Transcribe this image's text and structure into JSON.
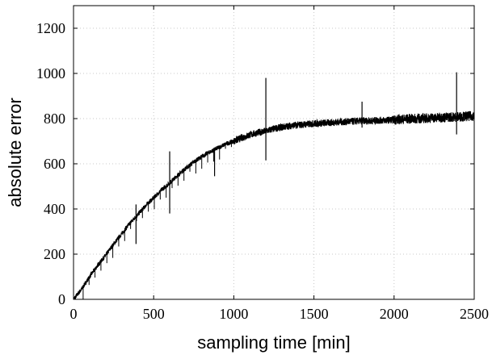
{
  "chart_data": {
    "type": "line",
    "title": "",
    "xlabel": "sampling  time [min]",
    "ylabel": "absolute error",
    "xlim": [
      0,
      2500
    ],
    "ylim": [
      0,
      1300
    ],
    "xticks": [
      0,
      500,
      1000,
      1500,
      2000,
      2500
    ],
    "yticks": [
      0,
      200,
      400,
      600,
      800,
      1000,
      1200
    ],
    "grid": true,
    "legend": "none",
    "line_color": "#000000",
    "series": [
      {
        "values_described_by": "x,y",
        "x": [
          0,
          50,
          100,
          150,
          200,
          250,
          300,
          350,
          400,
          450,
          500,
          550,
          600,
          650,
          700,
          750,
          800,
          850,
          900,
          950,
          1000,
          1050,
          1100,
          1150,
          1200,
          1250,
          1300,
          1350,
          1400,
          1450,
          1500,
          1550,
          1600,
          1650,
          1700,
          1750,
          1800,
          1850,
          1900,
          1950,
          2000,
          2050,
          2100,
          2150,
          2200,
          2250,
          2300,
          2350,
          2400,
          2450,
          2500
        ],
        "y": [
          0,
          45,
          100,
          150,
          195,
          245,
          290,
          335,
          375,
          415,
          450,
          485,
          515,
          550,
          580,
          608,
          632,
          652,
          670,
          688,
          700,
          715,
          728,
          738,
          745,
          755,
          762,
          768,
          772,
          775,
          778,
          780,
          782,
          785,
          786,
          788,
          790,
          790,
          792,
          793,
          795,
          797,
          799,
          800,
          802,
          803,
          805,
          807,
          808,
          810,
          812
        ]
      }
    ],
    "spikes": [
      {
        "x": 600,
        "low": 380,
        "high": 655
      },
      {
        "x": 390,
        "low": 245,
        "high": 420
      },
      {
        "x": 880,
        "low": 545,
        "high": 665
      },
      {
        "x": 1200,
        "low": 615,
        "high": 980
      },
      {
        "x": 1800,
        "low": 760,
        "high": 875
      },
      {
        "x": 2390,
        "low": 730,
        "high": 1005
      }
    ]
  }
}
